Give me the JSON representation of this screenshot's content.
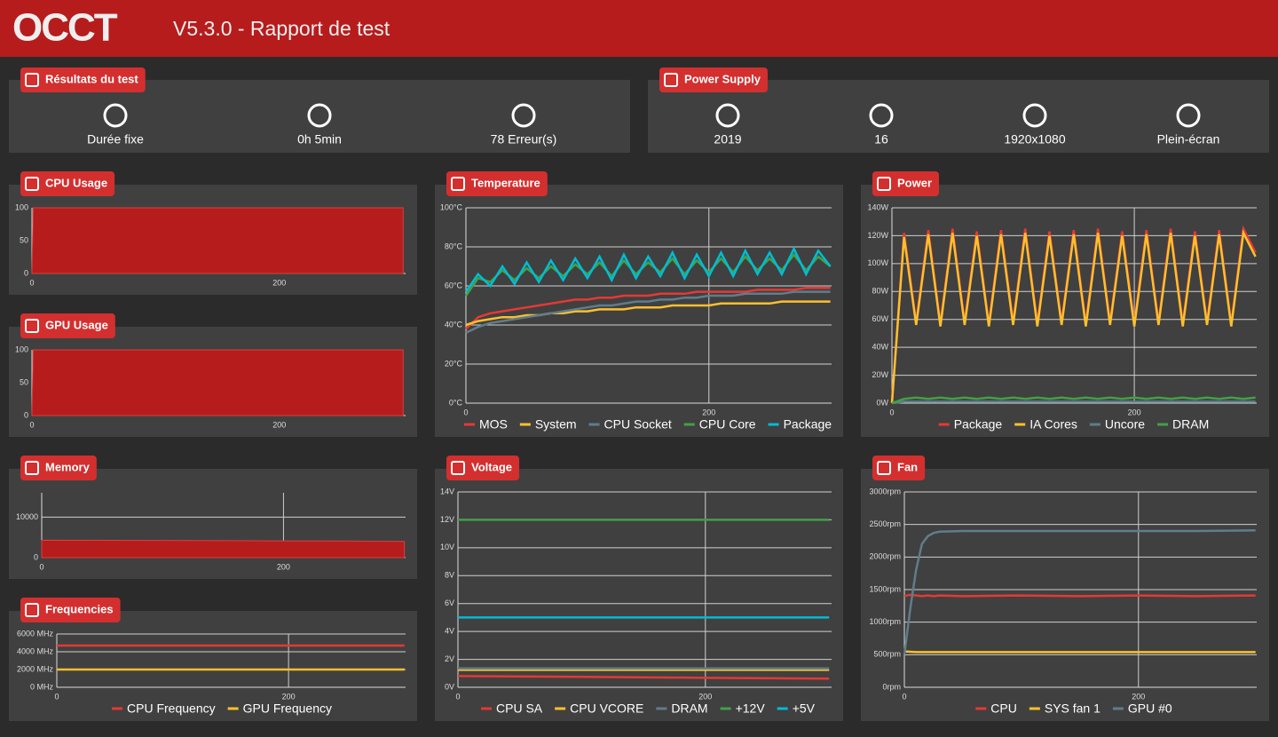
{
  "header": {
    "logo": "OCCT",
    "title": "V5.3.0 - Rapport de test"
  },
  "results": {
    "title": "Résultats du test",
    "items": [
      "Durée fixe",
      "0h 5min",
      "78 Erreur(s)"
    ]
  },
  "power_supply": {
    "title": "Power Supply",
    "items": [
      "2019",
      "16",
      "1920x1080",
      "Plein-écran"
    ]
  },
  "chart_data": [
    {
      "type": "area",
      "title": "CPU Usage",
      "x": [
        0,
        1,
        300
      ],
      "xlim": [
        0,
        302
      ],
      "xticks": [
        0,
        200
      ],
      "ylim": [
        0,
        100
      ],
      "yticks": [
        0,
        50,
        100
      ],
      "grid": false,
      "series": [
        {
          "color": "#b71c1c",
          "values": [
            0,
            100,
            100
          ]
        }
      ]
    },
    {
      "type": "area",
      "title": "GPU Usage",
      "x": [
        0,
        1,
        300
      ],
      "xlim": [
        0,
        302
      ],
      "xticks": [
        0,
        200
      ],
      "ylim": [
        0,
        100
      ],
      "yticks": [
        0,
        50,
        100
      ],
      "grid": false,
      "series": [
        {
          "color": "#b71c1c",
          "values": [
            0,
            100,
            100
          ]
        }
      ]
    },
    {
      "type": "area",
      "title": "Memory",
      "x": [
        0,
        100,
        200,
        250,
        300
      ],
      "xlim": [
        0,
        301
      ],
      "xticks": [
        0,
        200
      ],
      "ylim": [
        0,
        16000
      ],
      "yticks": [
        0,
        10000
      ],
      "grid": true,
      "series": [
        {
          "color": "#b71c1c",
          "values": [
            4300,
            4250,
            4150,
            4100,
            4000
          ]
        }
      ]
    },
    {
      "type": "line",
      "title": "Frequencies",
      "x": [
        0,
        300
      ],
      "xlim": [
        0,
        301
      ],
      "xticks": [
        0,
        200
      ],
      "ylim": [
        0,
        6000
      ],
      "yticks": [
        {
          "value": 0,
          "label": "0 MHz"
        },
        {
          "value": 2000,
          "label": "2000 MHz"
        },
        {
          "value": 4000,
          "label": "4000 MHz"
        },
        {
          "value": 6000,
          "label": "6000 MHz"
        }
      ],
      "grid": true,
      "legend": "bottom",
      "series": [
        {
          "name": "CPU Frequency",
          "color": "#e53935",
          "values": [
            4700,
            4700
          ]
        },
        {
          "name": "GPU Frequency",
          "color": "#fbc02d",
          "values": [
            2000,
            2000
          ]
        }
      ]
    },
    {
      "type": "line",
      "title": "Temperature",
      "x": [
        0,
        10,
        20,
        30,
        40,
        50,
        60,
        70,
        80,
        90,
        100,
        110,
        120,
        130,
        140,
        150,
        160,
        170,
        180,
        190,
        200,
        210,
        220,
        230,
        240,
        250,
        260,
        270,
        280,
        290,
        300
      ],
      "xlim": [
        0,
        301
      ],
      "xticks": [
        0,
        200
      ],
      "ylim": [
        0,
        100
      ],
      "yticks": [
        {
          "value": 0,
          "label": "0°C"
        },
        {
          "value": 20,
          "label": "20°C"
        },
        {
          "value": 40,
          "label": "40°C"
        },
        {
          "value": 60,
          "label": "60°C"
        },
        {
          "value": 80,
          "label": "80°C"
        },
        {
          "value": 100,
          "label": "100°C"
        }
      ],
      "grid": true,
      "legend": "bottom",
      "series": [
        {
          "name": "MOS",
          "color": "#e53935",
          "values": [
            38,
            44,
            46,
            47,
            48,
            49,
            50,
            51,
            52,
            53,
            53,
            54,
            54,
            55,
            55,
            55,
            56,
            56,
            56,
            57,
            57,
            57,
            57,
            57,
            58,
            58,
            58,
            58,
            59,
            59,
            59
          ]
        },
        {
          "name": "System",
          "color": "#fbc02d",
          "values": [
            40,
            42,
            43,
            44,
            44,
            45,
            45,
            46,
            46,
            47,
            47,
            48,
            48,
            48,
            49,
            49,
            49,
            50,
            50,
            50,
            50,
            51,
            51,
            51,
            51,
            51,
            52,
            52,
            52,
            52,
            52
          ]
        },
        {
          "name": "CPU Socket",
          "color": "#607d8b",
          "values": [
            36,
            39,
            41,
            42,
            43,
            44,
            45,
            46,
            47,
            48,
            49,
            50,
            50,
            51,
            52,
            52,
            53,
            53,
            54,
            54,
            55,
            55,
            55,
            56,
            56,
            56,
            56,
            57,
            57,
            57,
            57
          ]
        },
        {
          "name": "CPU Core",
          "color": "#43a047",
          "values": [
            55,
            64,
            62,
            68,
            63,
            69,
            64,
            70,
            65,
            71,
            66,
            72,
            65,
            73,
            66,
            72,
            67,
            74,
            66,
            73,
            67,
            74,
            67,
            75,
            68,
            74,
            68,
            76,
            68,
            75,
            70
          ]
        },
        {
          "name": "Package",
          "color": "#00bcd4",
          "values": [
            57,
            66,
            60,
            70,
            61,
            72,
            62,
            73,
            63,
            74,
            64,
            75,
            63,
            76,
            64,
            75,
            65,
            77,
            64,
            76,
            65,
            77,
            65,
            78,
            66,
            77,
            66,
            79,
            66,
            78,
            70
          ]
        }
      ]
    },
    {
      "type": "line",
      "title": "Power",
      "x": [
        0,
        10,
        20,
        30,
        40,
        50,
        60,
        70,
        80,
        90,
        100,
        110,
        120,
        130,
        140,
        150,
        160,
        170,
        180,
        190,
        200,
        210,
        220,
        230,
        240,
        250,
        260,
        270,
        280,
        290,
        300
      ],
      "xlim": [
        0,
        301
      ],
      "xticks": [
        0,
        200
      ],
      "ylim": [
        0,
        140
      ],
      "yticks": [
        {
          "value": 0,
          "label": "0W"
        },
        {
          "value": 20,
          "label": "20W"
        },
        {
          "value": 40,
          "label": "40W"
        },
        {
          "value": 60,
          "label": "60W"
        },
        {
          "value": 80,
          "label": "80W"
        },
        {
          "value": 100,
          "label": "100W"
        },
        {
          "value": 120,
          "label": "120W"
        },
        {
          "value": 140,
          "label": "140W"
        }
      ],
      "grid": true,
      "legend": "bottom",
      "series": [
        {
          "name": "Package",
          "color": "#e53935",
          "values": [
            0,
            122,
            58,
            124,
            57,
            125,
            58,
            123,
            57,
            124,
            58,
            125,
            57,
            123,
            58,
            124,
            57,
            125,
            58,
            123,
            57,
            124,
            58,
            125,
            57,
            123,
            58,
            124,
            57,
            125,
            108
          ]
        },
        {
          "name": "IA Cores",
          "color": "#fbc02d",
          "values": [
            0,
            119,
            56,
            121,
            55,
            122,
            56,
            120,
            55,
            121,
            56,
            122,
            55,
            120,
            56,
            121,
            55,
            122,
            56,
            120,
            55,
            121,
            56,
            122,
            55,
            120,
            56,
            121,
            55,
            122,
            105
          ]
        },
        {
          "name": "Uncore",
          "color": "#607d8b",
          "values": [
            0,
            1,
            1,
            1,
            1,
            1,
            1,
            1,
            1,
            1,
            1,
            1,
            1,
            1,
            1,
            1,
            1,
            1,
            1,
            1,
            1,
            1,
            1,
            1,
            1,
            1,
            1,
            1,
            1,
            1,
            1
          ]
        },
        {
          "name": "DRAM",
          "color": "#43a047",
          "values": [
            0,
            3,
            4,
            3,
            4,
            3,
            4,
            3,
            4,
            3,
            4,
            3,
            4,
            3,
            4,
            3,
            4,
            3,
            4,
            3,
            4,
            3,
            4,
            3,
            4,
            3,
            4,
            3,
            4,
            3,
            4
          ]
        }
      ]
    },
    {
      "type": "line",
      "title": "Voltage",
      "x": [
        0,
        100,
        200,
        300
      ],
      "xlim": [
        0,
        302
      ],
      "xticks": [
        0,
        200
      ],
      "ylim": [
        0,
        14
      ],
      "yticks": [
        {
          "value": 0,
          "label": "0V"
        },
        {
          "value": 2,
          "label": "2V"
        },
        {
          "value": 4,
          "label": "4V"
        },
        {
          "value": 6,
          "label": "6V"
        },
        {
          "value": 8,
          "label": "8V"
        },
        {
          "value": 10,
          "label": "10V"
        },
        {
          "value": 12,
          "label": "12V"
        },
        {
          "value": 14,
          "label": "14V"
        }
      ],
      "grid": true,
      "legend": "bottom",
      "series": [
        {
          "name": "CPU SA",
          "color": "#e53935",
          "values": [
            0.8,
            0.75,
            0.68,
            0.62
          ]
        },
        {
          "name": "CPU VCORE",
          "color": "#fbc02d",
          "values": [
            1.25,
            1.25,
            1.25,
            1.25
          ]
        },
        {
          "name": "DRAM",
          "color": "#607d8b",
          "values": [
            1.35,
            1.35,
            1.35,
            1.35
          ]
        },
        {
          "name": "+12V",
          "color": "#43a047",
          "values": [
            12,
            12,
            12,
            12
          ]
        },
        {
          "name": "+5V",
          "color": "#00bcd4",
          "values": [
            5,
            5,
            5,
            5
          ]
        }
      ]
    },
    {
      "type": "line",
      "title": "Fan",
      "x": [
        0,
        5,
        10,
        15,
        20,
        25,
        30,
        50,
        100,
        150,
        200,
        250,
        300
      ],
      "xlim": [
        0,
        301
      ],
      "xticks": [
        0,
        200
      ],
      "ylim": [
        0,
        3000
      ],
      "yticks": [
        {
          "value": 0,
          "label": "0rpm"
        },
        {
          "value": 500,
          "label": "500rpm"
        },
        {
          "value": 1000,
          "label": "1000rpm"
        },
        {
          "value": 1500,
          "label": "1500rpm"
        },
        {
          "value": 2000,
          "label": "2000rpm"
        },
        {
          "value": 2500,
          "label": "2500rpm"
        },
        {
          "value": 3000,
          "label": "3000rpm"
        }
      ],
      "grid": true,
      "legend": "bottom",
      "series": [
        {
          "name": "CPU",
          "color": "#e53935",
          "values": [
            1400,
            1420,
            1410,
            1400,
            1410,
            1400,
            1410,
            1400,
            1410,
            1400,
            1410,
            1400,
            1410
          ]
        },
        {
          "name": "SYS fan 1",
          "color": "#fbc02d",
          "values": [
            550,
            545,
            540,
            540,
            540,
            540,
            540,
            540,
            540,
            540,
            540,
            540,
            540
          ]
        },
        {
          "name": "GPU #0",
          "color": "#607d8b",
          "values": [
            500,
            1200,
            1800,
            2200,
            2320,
            2370,
            2390,
            2400,
            2400,
            2400,
            2400,
            2400,
            2410
          ]
        }
      ]
    }
  ]
}
